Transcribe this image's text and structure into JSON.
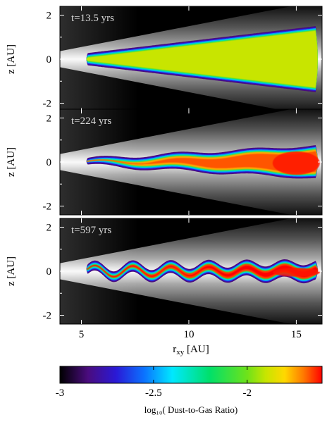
{
  "chart_data": {
    "type": "heatmap",
    "xlabel_main": "r",
    "xlabel_sub": "xy",
    "xlabel_unit": "[AU]",
    "ylabel": "z [AU]",
    "xlim": [
      4,
      16.2
    ],
    "ylim": [
      -2.4,
      2.4
    ],
    "xticks": [
      5,
      10,
      15
    ],
    "yticks": [
      -2,
      0,
      2
    ],
    "panels": [
      {
        "label": "t=13.5 yrs",
        "snapshot": "early",
        "layer_r_range": [
          5.3,
          15.9
        ],
        "layer_z_inner": 0.28,
        "layer_z_outer": 1.5,
        "log10_ratio_interior": -1.9,
        "wave_amplitude": 0.0,
        "wave_count": 0
      },
      {
        "label": "t=224 yrs",
        "snapshot": "mid",
        "layer_r_range": [
          5.3,
          15.9
        ],
        "layer_z_inner": 0.15,
        "layer_z_outer": 0.75,
        "log10_ratio_interior": -1.75,
        "wave_amplitude": 0.08,
        "wave_count": 6
      },
      {
        "label": "t=597 yrs",
        "snapshot": "late",
        "layer_r_range": [
          5.3,
          15.9
        ],
        "layer_z_inner": 0.22,
        "layer_z_outer": 0.42,
        "log10_ratio_interior": -1.65,
        "wave_amplitude": 0.22,
        "wave_count": 12
      }
    ],
    "colorbar": {
      "label": "log₁₀( Dust-to-Gas Ratio)",
      "min": -3.0,
      "max": -1.6,
      "ticks": [
        {
          "value": -3.0,
          "label": "-3"
        },
        {
          "value": -2.5,
          "label": "-2.5"
        },
        {
          "value": -2.0,
          "label": "-2"
        }
      ],
      "stops": [
        {
          "value": -3.0,
          "color": "#000000"
        },
        {
          "value": -2.85,
          "color": "#4a0c7e"
        },
        {
          "value": -2.7,
          "color": "#2a19d6"
        },
        {
          "value": -2.55,
          "color": "#0b72ff"
        },
        {
          "value": -2.4,
          "color": "#00e8ff"
        },
        {
          "value": -2.2,
          "color": "#00e06a"
        },
        {
          "value": -2.0,
          "color": "#6ee21a"
        },
        {
          "value": -1.9,
          "color": "#c8e500"
        },
        {
          "value": -1.8,
          "color": "#ffd800"
        },
        {
          "value": -1.7,
          "color": "#ff7a00"
        },
        {
          "value": -1.6,
          "color": "#ff0000"
        }
      ]
    }
  }
}
